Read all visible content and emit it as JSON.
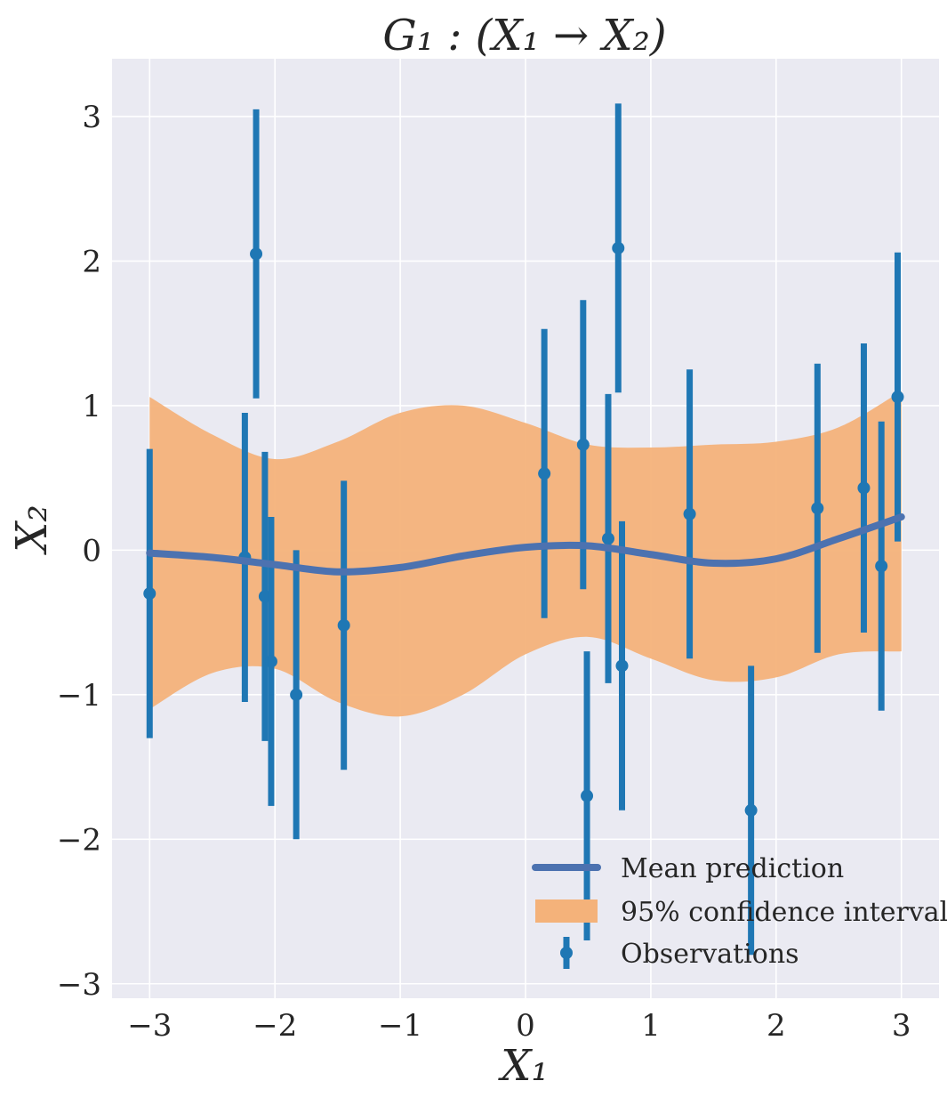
{
  "chart_data": {
    "type": "line",
    "title": "G₁ : (X₁ → X₂)",
    "xlabel": "X₁",
    "ylabel": "X₂",
    "xlim": [
      -3.3,
      3.3
    ],
    "ylim": [
      -3.1,
      3.4
    ],
    "xticks": [
      -3,
      -2,
      -1,
      0,
      1,
      2,
      3
    ],
    "yticks": [
      -3,
      -2,
      -1,
      0,
      1,
      2,
      3
    ],
    "xtick_labels": [
      "−3",
      "−2",
      "−1",
      "0",
      "1",
      "2",
      "3"
    ],
    "ytick_labels": [
      "−3",
      "−2",
      "−1",
      "0",
      "1",
      "2",
      "3"
    ],
    "grid": true,
    "legend_position": "lower-right",
    "colors": {
      "background": "#eaeaf2",
      "mean": "#4c72b0",
      "band": "#f4b27a",
      "observations": "#1f77b4",
      "grid": "#ffffff"
    },
    "series": [
      {
        "name": "Mean prediction",
        "kind": "line",
        "x": [
          -3.0,
          -2.5,
          -2.0,
          -1.5,
          -1.0,
          -0.5,
          0.0,
          0.5,
          1.0,
          1.5,
          2.0,
          2.5,
          3.0
        ],
        "y": [
          -0.02,
          -0.05,
          -0.1,
          -0.15,
          -0.12,
          -0.04,
          0.02,
          0.03,
          -0.03,
          -0.09,
          -0.06,
          0.08,
          0.23
        ]
      },
      {
        "name": "95% confidence interval",
        "kind": "band",
        "x": [
          -3.0,
          -2.5,
          -2.0,
          -1.5,
          -1.0,
          -0.5,
          0.0,
          0.5,
          1.0,
          1.5,
          2.0,
          2.5,
          3.0
        ],
        "lower": [
          -1.1,
          -0.85,
          -0.82,
          -1.05,
          -1.15,
          -1.0,
          -0.72,
          -0.6,
          -0.75,
          -0.9,
          -0.88,
          -0.72,
          -0.7
        ],
        "upper": [
          1.06,
          0.8,
          0.63,
          0.75,
          0.95,
          1.0,
          0.88,
          0.73,
          0.71,
          0.73,
          0.75,
          0.85,
          1.1
        ]
      },
      {
        "name": "Observations",
        "kind": "errorbar",
        "x": [
          -3.0,
          -2.24,
          -2.15,
          -2.08,
          -2.03,
          -1.83,
          -1.45,
          0.15,
          0.46,
          0.49,
          0.66,
          0.74,
          0.77,
          1.31,
          1.8,
          2.33,
          2.7,
          2.84,
          2.97
        ],
        "y": [
          -0.3,
          -0.05,
          2.05,
          -0.32,
          -0.77,
          -1.0,
          -0.52,
          0.53,
          0.73,
          -1.7,
          0.08,
          2.09,
          -0.8,
          0.25,
          -1.8,
          0.29,
          0.43,
          -0.11,
          1.06
        ],
        "error": 1.0
      }
    ]
  }
}
